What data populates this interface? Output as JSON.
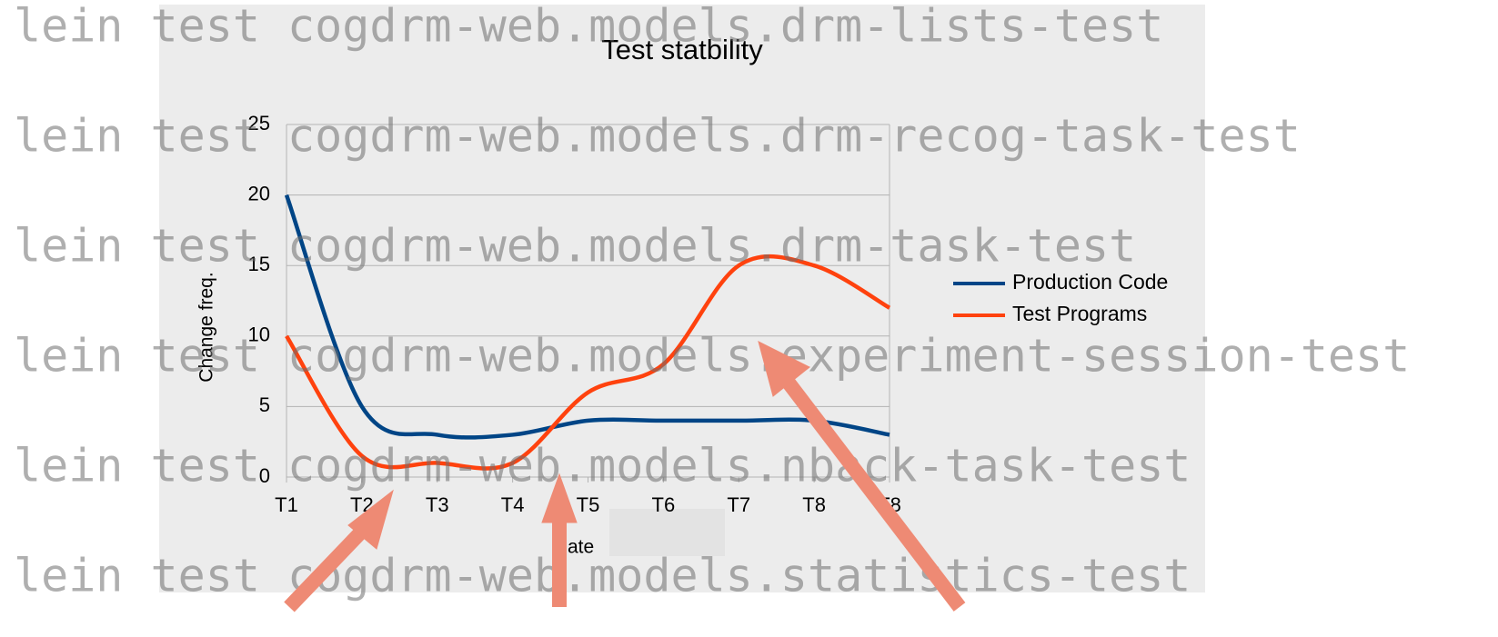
{
  "background_lines": [
    "lein test cogdrm-web.models.drm-lists-test",
    "lein test cogdrm-web.models.drm-recog-task-test",
    "lein test cogdrm-web.models.drm-task-test",
    "lein test cogdrm-web.models.experiment-session-test",
    "lein test cogdrm-web.models.nback-task-test",
    "lein test cogdrm-web.models.statistics-test"
  ],
  "chart_data": {
    "type": "line",
    "title": "Test statbility",
    "x_label": "Date",
    "y_label": "Change freq.",
    "categories": [
      "T1",
      "T2",
      "T3",
      "T4",
      "T5",
      "T6",
      "T7",
      "T8",
      "T8"
    ],
    "series": [
      {
        "name": "Production Code",
        "color": "#004586",
        "values": [
          20,
          5,
          3,
          3,
          4,
          4,
          4,
          4,
          3
        ]
      },
      {
        "name": "Test Programs",
        "color": "#ff420e",
        "values": [
          10,
          1.5,
          1,
          1,
          6,
          8,
          15,
          15,
          12
        ]
      }
    ],
    "ylim": [
      0,
      25
    ],
    "yticks": [
      0,
      5,
      10,
      15,
      20,
      25
    ],
    "grid": true,
    "legend": "right",
    "smooth": true
  }
}
